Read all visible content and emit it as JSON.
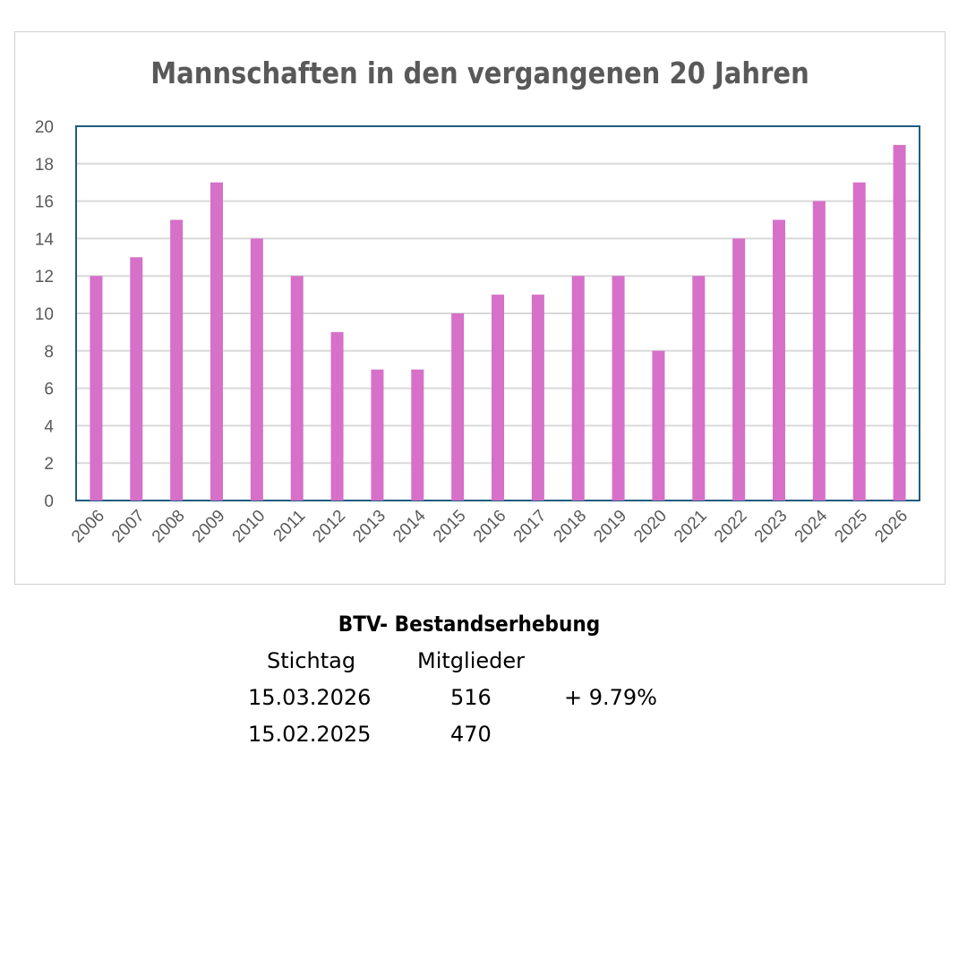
{
  "chart_data": {
    "type": "bar",
    "title": "Mannschaften in den vergangenen 20  Jahren",
    "categories": [
      "2006",
      "2007",
      "2008",
      "2009",
      "2010",
      "2011",
      "2012",
      "2013",
      "2014",
      "2015",
      "2016",
      "2017",
      "2018",
      "2019",
      "2020",
      "2021",
      "2022",
      "2023",
      "2024",
      "2025",
      "2026"
    ],
    "values": [
      12,
      13,
      15,
      17,
      14,
      12,
      9,
      7,
      7,
      10,
      11,
      11,
      12,
      12,
      8,
      12,
      14,
      15,
      16,
      17,
      19
    ],
    "ylim": [
      0,
      20
    ],
    "yticks": [
      0,
      2,
      4,
      6,
      8,
      10,
      12,
      14,
      16,
      18,
      20
    ],
    "xlabel": "",
    "ylabel": "",
    "grid": true,
    "bar_color": "#d670c8",
    "axis_color": "#1f5c80"
  },
  "stats": {
    "title": "BTV- Bestandserhebung",
    "headers": [
      "Stichtag",
      "Mitglieder"
    ],
    "rows": [
      {
        "date": "15.03.2026",
        "members": "516",
        "change": "+ 9.79%"
      },
      {
        "date": "15.02.2025",
        "members": "470",
        "change": ""
      }
    ]
  }
}
